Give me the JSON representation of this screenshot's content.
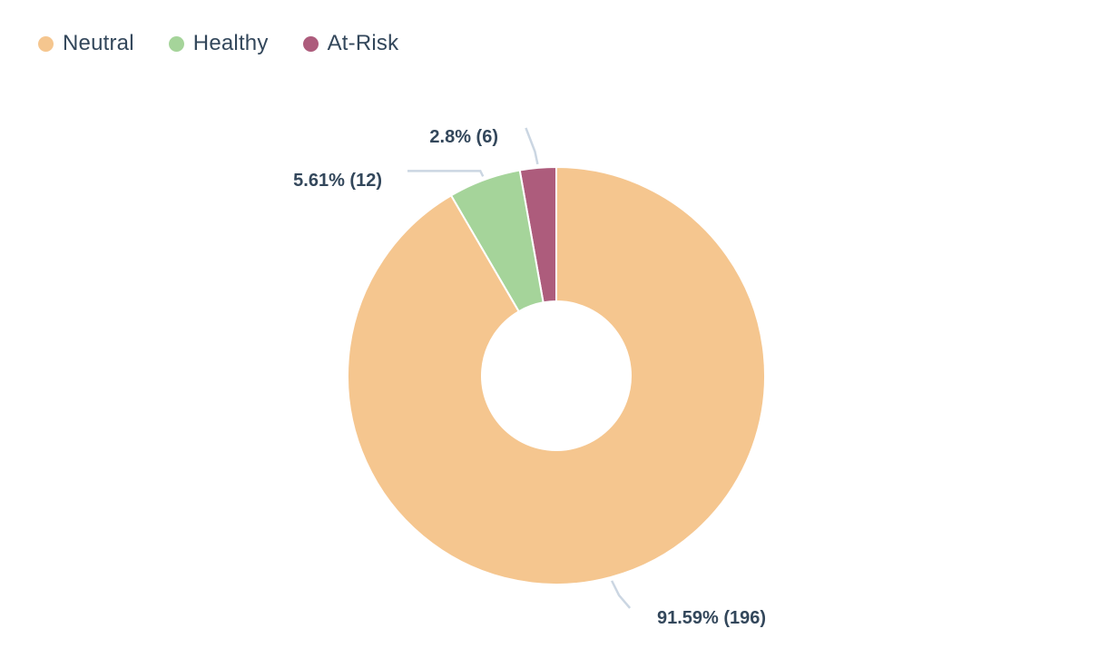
{
  "chart_data": {
    "type": "pie",
    "donut": true,
    "legend_position": "top-left",
    "categories": [
      "Neutral",
      "Healthy",
      "At-Risk"
    ],
    "values": [
      196,
      12,
      6
    ],
    "percentages": [
      91.59,
      5.61,
      2.8
    ],
    "colors": [
      "#f5c68f",
      "#a5d49a",
      "#ad5c7c"
    ],
    "data_labels": [
      "91.59% (196)",
      "5.61% (12)",
      "2.8% (6)"
    ],
    "slice_order": [
      "At-Risk",
      "Healthy",
      "Neutral"
    ]
  },
  "legend": [
    {
      "label": "Neutral",
      "color": "#f5c68f"
    },
    {
      "label": "Healthy",
      "color": "#a5d49a"
    },
    {
      "label": "At-Risk",
      "color": "#ad5c7c"
    }
  ]
}
